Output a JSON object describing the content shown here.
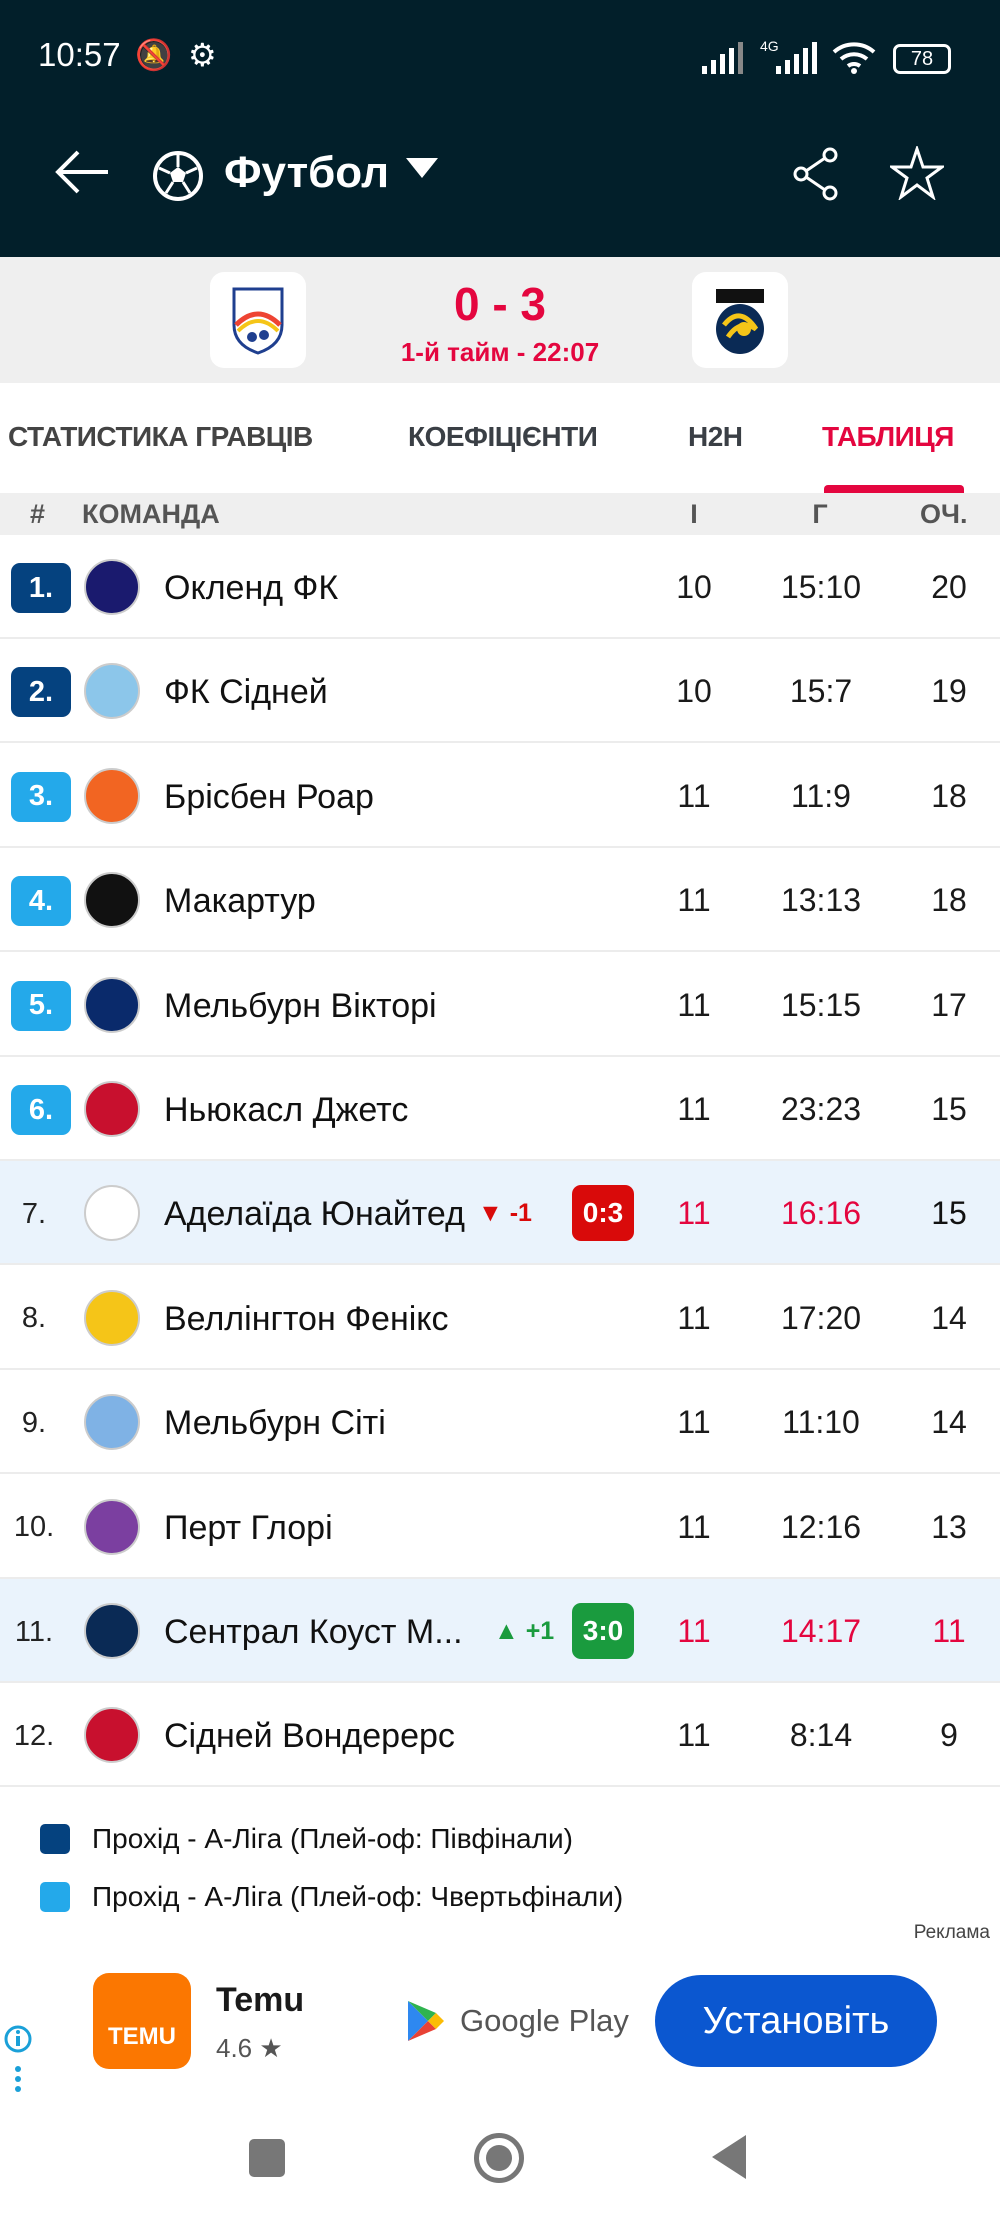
{
  "status_bar": {
    "time": "10:57",
    "network": "4G",
    "battery": "78"
  },
  "toolbar": {
    "title": "Футбол",
    "icons": [
      "back-arrow-icon",
      "soccer-ball-icon",
      "dropdown-icon",
      "share-icon",
      "star-icon"
    ]
  },
  "match": {
    "home": "Adelaide United",
    "away": "Central Coast Mariners",
    "score": "0 - 3",
    "status": "1-й тайм - 22:07"
  },
  "tabs": [
    {
      "label": "СТАТИСТИКА ГРАВЦІВ"
    },
    {
      "label": "КОЕФІЦІЄНТИ"
    },
    {
      "label": "H2H"
    },
    {
      "label": "ТАБЛИЦЯ",
      "active": true
    }
  ],
  "table": {
    "headers": {
      "rank": "#",
      "team": "КОМАНДА",
      "played": "І",
      "goals": "Г",
      "points": "ОЧ."
    },
    "rows": [
      {
        "rank": "1.",
        "team": "Окленд ФК",
        "played": "10",
        "goals": "15:10",
        "points": "20",
        "zone": "semi"
      },
      {
        "rank": "2.",
        "team": "ФК Сідней",
        "played": "10",
        "goals": "15:7",
        "points": "19",
        "zone": "semi"
      },
      {
        "rank": "3.",
        "team": "Брісбен Роар",
        "played": "11",
        "goals": "11:9",
        "points": "18",
        "zone": "quarter"
      },
      {
        "rank": "4.",
        "team": "Макартур",
        "played": "11",
        "goals": "13:13",
        "points": "18",
        "zone": "quarter"
      },
      {
        "rank": "5.",
        "team": "Мельбурн Вікторі",
        "played": "11",
        "goals": "15:15",
        "points": "17",
        "zone": "quarter"
      },
      {
        "rank": "6.",
        "team": "Ньюкасл Джетс",
        "played": "11",
        "goals": "23:23",
        "points": "15",
        "zone": "quarter"
      },
      {
        "rank": "7.",
        "team": "Аделаїда Юнайтед",
        "played": "11",
        "goals": "16:16",
        "points": "15",
        "live": true,
        "move": "-1",
        "live_score": "0:3"
      },
      {
        "rank": "8.",
        "team": "Веллінгтон Фенікс",
        "played": "11",
        "goals": "17:20",
        "points": "14"
      },
      {
        "rank": "9.",
        "team": "Мельбурн Сіті",
        "played": "11",
        "goals": "11:10",
        "points": "14"
      },
      {
        "rank": "10.",
        "team": "Перт Глорі",
        "played": "11",
        "goals": "12:16",
        "points": "13"
      },
      {
        "rank": "11.",
        "team": "Сентрал Коуст М...",
        "played": "11",
        "goals": "14:17",
        "points": "11",
        "live": true,
        "move": "+1",
        "live_score": "3:0"
      },
      {
        "rank": "12.",
        "team": "Сідней Вондерерс",
        "played": "11",
        "goals": "8:14",
        "points": "9"
      }
    ]
  },
  "legend": [
    {
      "label": "Прохід - А-Ліга (Плей-оф: Півфінали)",
      "color": "#05427f"
    },
    {
      "label": "Прохід - А-Ліга (Плей-оф: Чвертьфінали)",
      "color": "#24a9ea"
    }
  ],
  "ad": {
    "label": "Реклама",
    "app_name": "Temu",
    "logo_text": "TEMU",
    "rating": "4.6 ★",
    "store": "Google Play",
    "cta": "Установіть"
  },
  "colors": {
    "accent": "#e4063f",
    "header": "#021f2a",
    "win": "#1a9b3e",
    "loss": "#d90a0a",
    "cta": "#0b57d0"
  }
}
